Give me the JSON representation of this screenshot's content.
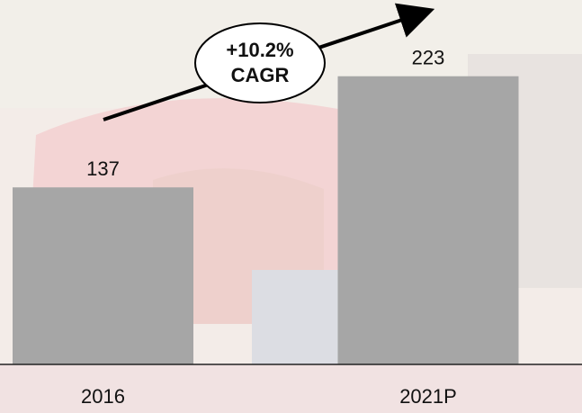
{
  "chart_data": {
    "type": "bar",
    "categories": [
      "2016",
      "2021P"
    ],
    "values": [
      137,
      223
    ],
    "color": "#a6a6a6",
    "ylim": [
      0,
      282
    ],
    "annotation": [
      "+10.2%",
      "CAGR"
    ]
  }
}
